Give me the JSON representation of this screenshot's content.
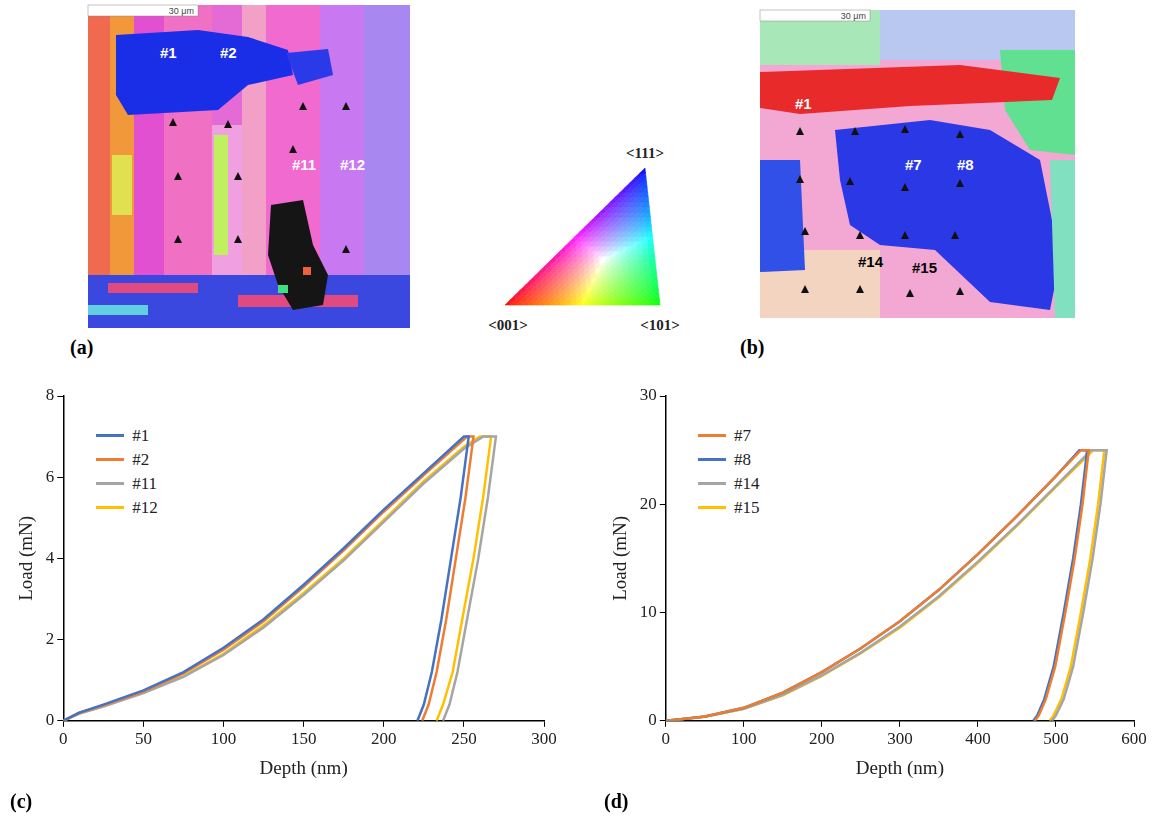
{
  "maps": [
    {
      "panel": "(a)",
      "scale_bar": "30 μm",
      "labels": [
        "#1",
        "#2",
        "#11",
        "#12"
      ]
    },
    {
      "panel": "(b)",
      "scale_bar": "30 μm",
      "labels": [
        "#1",
        "#7",
        "#8",
        "#14",
        "#15"
      ]
    }
  ],
  "color_key": {
    "labels": [
      "<111>",
      "<001>",
      "<101>"
    ]
  },
  "chart_data": [
    {
      "panel": "(c)",
      "type": "line",
      "x_label": "Depth (nm)",
      "y_label": "Load (mN)",
      "xlim": [
        0,
        300
      ],
      "xticks": [
        0,
        50,
        100,
        150,
        200,
        250,
        300
      ],
      "ylim": [
        0,
        8
      ],
      "yticks": [
        0,
        2,
        4,
        6,
        8
      ],
      "grid": false,
      "legend": "upper left",
      "series": [
        {
          "name": "#1",
          "color": "#4472c4",
          "x": [
            0,
            10,
            25,
            50,
            75,
            100,
            125,
            150,
            175,
            200,
            225,
            250,
            253,
            248,
            242,
            236,
            230,
            225,
            221
          ],
          "values": [
            0,
            0.2,
            0.4,
            0.75,
            1.2,
            1.8,
            2.5,
            3.35,
            4.25,
            5.2,
            6.1,
            7.0,
            7.0,
            5.5,
            4.0,
            2.5,
            1.2,
            0.4,
            0
          ]
        },
        {
          "name": "#2",
          "color": "#ed7d31",
          "x": [
            0,
            10,
            25,
            50,
            75,
            100,
            125,
            150,
            175,
            200,
            225,
            252,
            256,
            251,
            245,
            239,
            233,
            228,
            224
          ],
          "values": [
            0,
            0.2,
            0.38,
            0.72,
            1.17,
            1.75,
            2.45,
            3.3,
            4.2,
            5.15,
            6.05,
            7.0,
            7.0,
            5.5,
            4.0,
            2.5,
            1.2,
            0.4,
            0
          ]
        },
        {
          "name": "#11",
          "color": "#a5a5a5",
          "x": [
            0,
            10,
            25,
            50,
            75,
            100,
            125,
            150,
            175,
            200,
            225,
            250,
            262,
            270,
            265,
            259,
            252,
            246,
            241,
            237
          ],
          "values": [
            0,
            0.18,
            0.35,
            0.68,
            1.08,
            1.62,
            2.3,
            3.1,
            3.95,
            4.9,
            5.85,
            6.7,
            7.0,
            7.0,
            5.5,
            4.0,
            2.5,
            1.2,
            0.4,
            0
          ]
        },
        {
          "name": "#12",
          "color": "#ffc000",
          "x": [
            0,
            10,
            25,
            50,
            75,
            100,
            125,
            150,
            175,
            200,
            225,
            250,
            260,
            267,
            262,
            256,
            249,
            243,
            237,
            233
          ],
          "values": [
            0,
            0.18,
            0.36,
            0.7,
            1.1,
            1.65,
            2.35,
            3.15,
            4.0,
            4.95,
            5.9,
            6.75,
            7.0,
            7.0,
            5.5,
            4.0,
            2.5,
            1.2,
            0.4,
            0
          ]
        }
      ]
    },
    {
      "panel": "(d)",
      "type": "line",
      "x_label": "Depth (nm)",
      "y_label": "Load (mN)",
      "xlim": [
        0,
        600
      ],
      "xticks": [
        0,
        100,
        200,
        300,
        400,
        500,
        600
      ],
      "ylim": [
        0,
        30
      ],
      "yticks": [
        0,
        10,
        20,
        30
      ],
      "grid": false,
      "legend": "upper left",
      "series": [
        {
          "name": "#7",
          "color": "#ed7d31",
          "x": [
            0,
            25,
            50,
            100,
            150,
            200,
            250,
            300,
            350,
            400,
            450,
            500,
            532,
            542,
            534,
            524,
            512,
            499,
            487,
            478,
            473
          ],
          "values": [
            0,
            0.2,
            0.4,
            1.2,
            2.6,
            4.5,
            6.7,
            9.2,
            12.1,
            15.4,
            18.9,
            22.6,
            25,
            25,
            20,
            15,
            10,
            5,
            2,
            0.5,
            0
          ]
        },
        {
          "name": "#8",
          "color": "#4472c4",
          "x": [
            0,
            25,
            50,
            100,
            150,
            200,
            250,
            300,
            350,
            400,
            450,
            500,
            530,
            540,
            532,
            522,
            510,
            497,
            485,
            476,
            471
          ],
          "values": [
            0,
            0.2,
            0.4,
            1.2,
            2.6,
            4.5,
            6.7,
            9.2,
            12.1,
            15.4,
            18.9,
            22.6,
            25,
            25,
            20,
            15,
            10,
            5,
            2,
            0.5,
            0
          ]
        },
        {
          "name": "#14",
          "color": "#a5a5a5",
          "x": [
            0,
            25,
            50,
            100,
            150,
            200,
            250,
            300,
            350,
            400,
            450,
            500,
            545,
            565,
            557,
            547,
            535,
            522,
            510,
            500,
            495
          ],
          "values": [
            0,
            0.18,
            0.38,
            1.1,
            2.4,
            4.2,
            6.3,
            8.7,
            11.5,
            14.7,
            18.1,
            21.7,
            25,
            25,
            20,
            15,
            10,
            5,
            2,
            0.5,
            0
          ]
        },
        {
          "name": "#15",
          "color": "#ffc000",
          "x": [
            0,
            25,
            50,
            100,
            150,
            200,
            250,
            300,
            350,
            400,
            450,
            500,
            548,
            562,
            554,
            544,
            532,
            519,
            507,
            497,
            492
          ],
          "values": [
            0,
            0.18,
            0.38,
            1.1,
            2.35,
            4.15,
            6.25,
            8.6,
            11.4,
            14.6,
            18.0,
            21.6,
            25,
            25,
            20,
            15,
            10,
            5,
            2,
            0.5,
            0
          ]
        }
      ]
    }
  ]
}
